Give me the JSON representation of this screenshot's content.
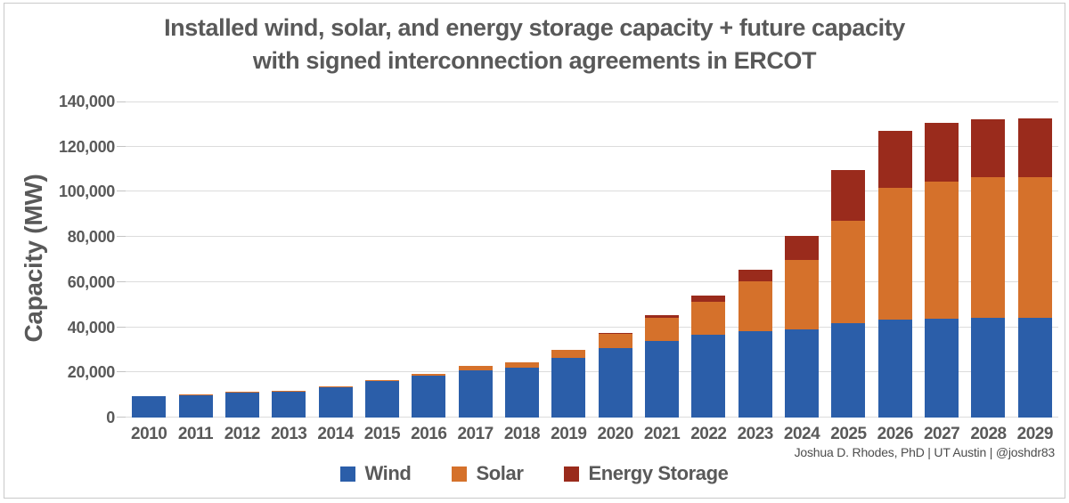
{
  "title": {
    "line1": "Installed wind, solar, and energy storage capacity + future capacity",
    "line2": "with signed interconnection agreements in ERCOT"
  },
  "y_axis": {
    "title": "Capacity (MW)",
    "tick_labels": [
      "0",
      "20,000",
      "40,000",
      "60,000",
      "80,000",
      "100,000",
      "120,000",
      "140,000"
    ],
    "tick_values": [
      0,
      20000,
      40000,
      60000,
      80000,
      100000,
      120000,
      140000
    ]
  },
  "attribution": "Joshua D. Rhodes, PhD | UT Austin | @joshdr83",
  "colors": {
    "wind": "#2B5EA9",
    "solar": "#D5712B",
    "energy_storage": "#9A2B1C",
    "text": "#595959",
    "gridline": "#DCDCDC",
    "frame_border": "#C9C9C9"
  },
  "legend": [
    {
      "label": "Wind",
      "color": "#2B5EA9"
    },
    {
      "label": "Solar",
      "color": "#D5712B"
    },
    {
      "label": "Energy Storage",
      "color": "#9A2B1C"
    }
  ],
  "chart_data": {
    "type": "bar",
    "stacked": true,
    "title": "Installed wind, solar, and energy storage capacity + future capacity with signed interconnection agreements in ERCOT",
    "xlabel": "",
    "ylabel": "Capacity (MW)",
    "ylim": [
      0,
      140000
    ],
    "grid": true,
    "legend_position": "bottom",
    "categories": [
      "2010",
      "2011",
      "2012",
      "2013",
      "2014",
      "2015",
      "2016",
      "2017",
      "2018",
      "2019",
      "2020",
      "2021",
      "2022",
      "2023",
      "2024",
      "2025",
      "2026",
      "2027",
      "2028",
      "2029"
    ],
    "series": [
      {
        "name": "Wind",
        "color": "#2B5EA9",
        "values": [
          9500,
          9900,
          11200,
          11500,
          13600,
          16200,
          18700,
          21100,
          22200,
          26500,
          30800,
          34000,
          36700,
          38200,
          39200,
          41700,
          43400,
          43900,
          44000,
          44000
        ]
      },
      {
        "name": "Solar",
        "color": "#D5712B",
        "values": [
          150,
          200,
          250,
          300,
          400,
          500,
          800,
          1700,
          2200,
          3400,
          6400,
          10300,
          14400,
          22300,
          30500,
          45500,
          58300,
          60700,
          62300,
          62300
        ]
      },
      {
        "name": "Energy Storage",
        "color": "#9A2B1C",
        "values": [
          0,
          0,
          0,
          0,
          0,
          0,
          0,
          100,
          100,
          150,
          300,
          900,
          2800,
          4900,
          10700,
          22500,
          25200,
          26000,
          26000,
          26400
        ]
      }
    ]
  }
}
